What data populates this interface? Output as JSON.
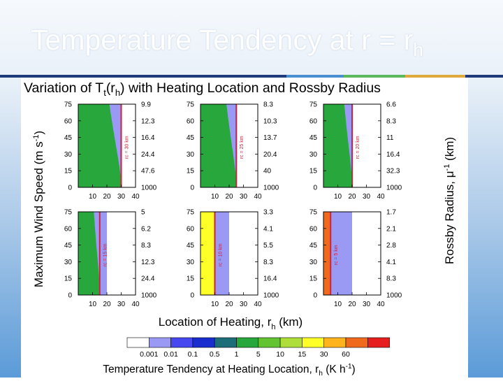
{
  "slide": {
    "title": "Temperature Tendency at r = r",
    "title_sub": "h",
    "accent_colors": [
      "#4a90d0",
      "#5cb85c",
      "#e0a93b",
      "#1f3b7a"
    ]
  },
  "chart_data": {
    "type": "heatmap",
    "title": "Variation of Tt(rh) with Heating Location and Rossby Radius",
    "title_parts": {
      "pre": "Variation of T",
      "sub1": "t",
      "mid": "(r",
      "sub2": "h",
      "post": ") with Heating Location and Rossby Radius"
    },
    "xlabel": "Location of Heating, rh (km)",
    "xlabel_parts": {
      "pre": "Location of Heating, r",
      "sub": "h",
      "post": " (km)"
    },
    "ylabel": "Maximum Wind Speed (m s-1)",
    "ylabel_parts": {
      "pre": "Maximum Wind Speed (m s",
      "sup": "-1",
      "post": ")"
    },
    "ylabel2": "Rossby Radius, μ-1 (km)",
    "ylabel2_parts": {
      "pre": "Rossby Radius, μ",
      "sup": "-1",
      "post": " (km)"
    },
    "xticks": [
      "10",
      "20",
      "30",
      "40"
    ],
    "xlim": [
      0,
      40
    ],
    "yticks": [
      "0",
      "15",
      "30",
      "45",
      "60",
      "75"
    ],
    "ylim": [
      0,
      75
    ],
    "colorbar": {
      "label_parts": {
        "pre": "Temperature Tendency at Heating Location, r",
        "sub": "h",
        "post": " (K h",
        "sup": "-1",
        "post2": ")"
      },
      "ticks": [
        "0.001",
        "0.01",
        "0.1",
        "0.5",
        "1",
        "5",
        "10",
        "15",
        "30",
        "60"
      ],
      "colors": [
        "#ffffff",
        "#9a9af5",
        "#4848f0",
        "#1a2ed0",
        "#1e6e7a",
        "#28a83c",
        "#62c432",
        "#aede3a",
        "#ffff28",
        "#ffb41e",
        "#f06a1e",
        "#e61e1e"
      ]
    },
    "panels": [
      {
        "rc": 30,
        "rc_label": "rc = 30 km",
        "right_ticks": [
          "9.9",
          "12.3",
          "16.4",
          "24.4",
          "47.6",
          "1000"
        ]
      },
      {
        "rc": 25,
        "rc_label": "rc = 25 km",
        "right_ticks": [
          "8.3",
          "10.3",
          "13.7",
          "20.4",
          "40",
          "1000"
        ]
      },
      {
        "rc": 20,
        "rc_label": "rc = 20 km",
        "right_ticks": [
          "6.6",
          "8.3",
          "11",
          "16.4",
          "32.3",
          "1000"
        ]
      },
      {
        "rc": 15,
        "rc_label": "rc = 15 km",
        "right_ticks": [
          "5",
          "6.2",
          "8.3",
          "12.3",
          "24.4",
          "1000"
        ]
      },
      {
        "rc": 10,
        "rc_label": "rc = 10 km",
        "right_ticks": [
          "3.3",
          "4.1",
          "5.5",
          "8.3",
          "16.4",
          "1000"
        ]
      },
      {
        "rc": 5,
        "rc_label": "rc = 5 km",
        "right_ticks": [
          "1.7",
          "2.1",
          "2.8",
          "4.1",
          "8.3",
          "1000"
        ]
      }
    ]
  }
}
